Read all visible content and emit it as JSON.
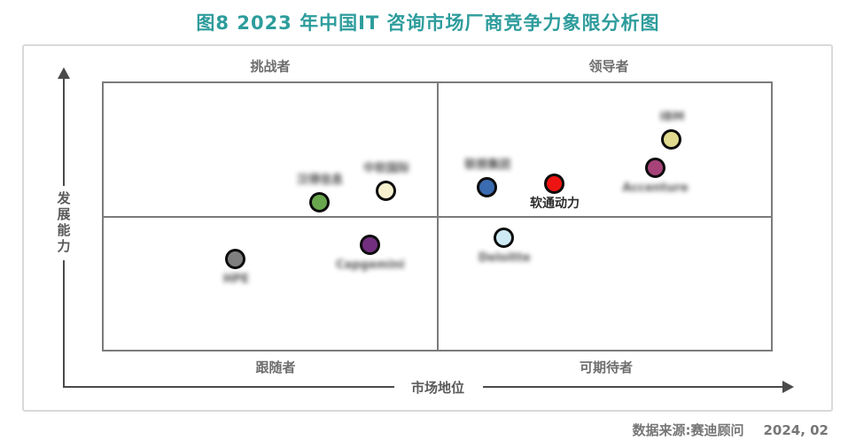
{
  "title": "图8  2023 年中国IT 咨询市场厂商竞争力象限分析图",
  "source": {
    "note": "数据来源:赛迪顾问",
    "date": "2024, 02"
  },
  "axes": {
    "y_label": "发展能力",
    "x_label": "市场地位"
  },
  "quadrants": {
    "top_left": "挑战者",
    "top_right": "领导者",
    "bottom_left": "跟随者",
    "bottom_right": "可期待者"
  },
  "colors": {
    "title": "#2e9c9c",
    "box_line": "#7b7b7b",
    "axis_line": "#4a4a4a",
    "label_gray": "#6e6e6e",
    "panel_frame": "#d9d9d9",
    "bubble_border": "#0c0c0c"
  },
  "chart_data": {
    "type": "scatter",
    "title": "图8  2023 年中国IT 咨询市场厂商竞争力象限分析图",
    "xlabel": "市场地位",
    "ylabel": "发展能力",
    "xlim": [
      0,
      100
    ],
    "ylim": [
      0,
      100
    ],
    "grid": false,
    "quadrant_dividers": {
      "x": 50,
      "y": 50
    },
    "quadrant_labels": [
      "挑战者",
      "领导者",
      "跟随者",
      "可期待者"
    ],
    "points": [
      {
        "label": "HPE",
        "x": 20.0,
        "y": 34.0,
        "color": "#7f7f7f",
        "label_pos": "below",
        "blurred": true
      },
      {
        "label": "汉得信息",
        "x": 32.5,
        "y": 55.0,
        "color": "#69a74e",
        "label_pos": "above",
        "blurred": true
      },
      {
        "label": "中软国际",
        "x": 42.4,
        "y": 59.5,
        "color": "#f6f0ce",
        "label_pos": "above",
        "blurred": true
      },
      {
        "label": "Capgemini",
        "x": 40.0,
        "y": 39.5,
        "color": "#722f80",
        "label_pos": "below",
        "blurred": true
      },
      {
        "label": "联想集团",
        "x": 57.5,
        "y": 60.5,
        "color": "#3b6bb0",
        "label_pos": "above",
        "blurred": true
      },
      {
        "label": "软通动力",
        "x": 67.5,
        "y": 62.0,
        "color": "#ee1411",
        "label_pos": "below",
        "blurred": false
      },
      {
        "label": "Deloitte",
        "x": 60.0,
        "y": 42.0,
        "color": "#cdeaf4",
        "label_pos": "below",
        "blurred": true
      },
      {
        "label": "Accenture",
        "x": 82.5,
        "y": 68.0,
        "color": "#a8437a",
        "label_pos": "below",
        "blurred": true
      },
      {
        "label": "IBM",
        "x": 85.0,
        "y": 78.5,
        "color": "#e0db8e",
        "label_pos": "above",
        "blurred": true
      }
    ]
  }
}
